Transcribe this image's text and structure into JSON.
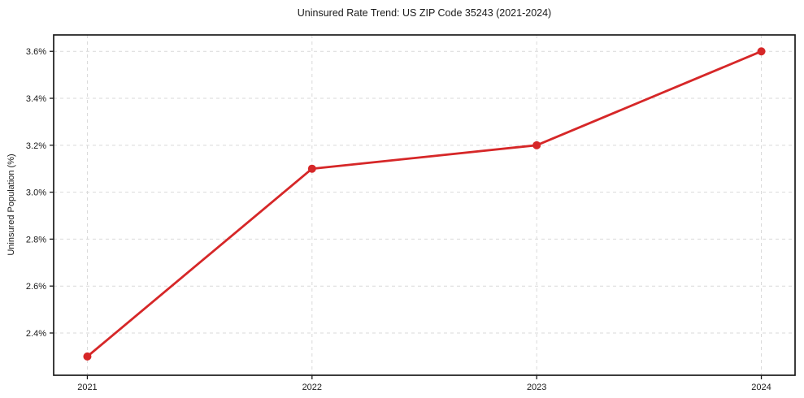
{
  "chart_data": {
    "type": "line",
    "title": "Uninsured Rate Trend: US ZIP Code 35243 (2021-2024)",
    "xlabel": "",
    "ylabel": "Uninsured Population (%)",
    "x": [
      2021,
      2022,
      2023,
      2024
    ],
    "x_tick_labels": [
      "2021",
      "2022",
      "2023",
      "2024"
    ],
    "series": [
      {
        "name": "uninsured-rate",
        "values": [
          2.3,
          3.1,
          3.2,
          3.6
        ]
      }
    ],
    "y_ticks": [
      2.4,
      2.6,
      2.8,
      3.0,
      3.2,
      3.4,
      3.6
    ],
    "y_tick_labels": [
      "2.4%",
      "2.6%",
      "2.8%",
      "3.0%",
      "3.2%",
      "3.4%",
      "3.6%"
    ],
    "xlim": [
      2020.85,
      2024.15
    ],
    "ylim": [
      2.22,
      3.67
    ],
    "grid": true,
    "grid_style": "dashed",
    "legend": "none",
    "marker": "circle"
  },
  "colors": {
    "line": "#d62728",
    "grid": "#d9d9d9",
    "axis": "#1a1a1a",
    "text": "#1a1a1a",
    "background": "#ffffff"
  }
}
